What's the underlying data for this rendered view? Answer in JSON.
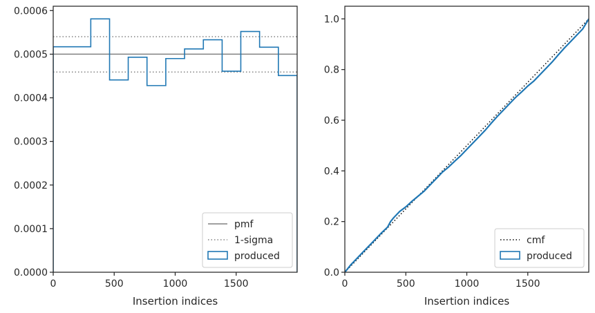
{
  "chart_data": [
    {
      "type": "step",
      "xlabel": "Insertion indices",
      "ylabel": "",
      "xlim": [
        0,
        2000
      ],
      "ylim": [
        0,
        0.00061
      ],
      "xticks": [
        0,
        500,
        1000,
        1500
      ],
      "xtick_labels": [
        "0",
        "500",
        "1000",
        "1500"
      ],
      "yticks": [
        0,
        0.0001,
        0.0002,
        0.0003,
        0.0004,
        0.0005,
        0.0006
      ],
      "ytick_labels": [
        "0.0000",
        "0.0001",
        "0.0002",
        "0.0003",
        "0.0004",
        "0.0005",
        "0.0006"
      ],
      "grid": false,
      "legend_position": "lower-right",
      "reference_lines": [
        {
          "name": "pmf",
          "y": 0.0005,
          "style": "solid",
          "color": "#808080"
        },
        {
          "name": "1-sigma",
          "y": 0.00054,
          "style": "dotted",
          "color": "#808080"
        },
        {
          "name": "1-sigma",
          "y": 0.000459,
          "style": "dotted",
          "color": "#808080"
        }
      ],
      "series": [
        {
          "name": "produced",
          "color": "#1f77b4",
          "bin_edges": [
            0,
            308,
            462,
            615,
            769,
            923,
            1077,
            1231,
            1385,
            1538,
            1692,
            1846,
            2000
          ],
          "values": [
            0.000517,
            0.000581,
            0.000441,
            0.000493,
            0.000428,
            0.00049,
            0.000512,
            0.000533,
            0.000461,
            0.000552,
            0.000516,
            0.000451
          ]
        }
      ],
      "legend": [
        "pmf",
        "1-sigma",
        "produced"
      ]
    },
    {
      "type": "line",
      "xlabel": "Insertion indices",
      "ylabel": "",
      "xlim": [
        0,
        2000
      ],
      "ylim": [
        0,
        1.05
      ],
      "xticks": [
        0,
        500,
        1000,
        1500
      ],
      "xtick_labels": [
        "0",
        "500",
        "1000",
        "1500"
      ],
      "yticks": [
        0,
        0.2,
        0.4,
        0.6,
        0.8,
        1.0
      ],
      "ytick_labels": [
        "0.0",
        "0.2",
        "0.4",
        "0.6",
        "0.8",
        "1.0"
      ],
      "grid": false,
      "legend_position": "lower-right",
      "series": [
        {
          "name": "cmf",
          "style": "dotted",
          "color": "#000000",
          "x": [
            0,
            2000
          ],
          "y": [
            0,
            1.0
          ]
        },
        {
          "name": "produced",
          "color": "#1f77b4",
          "x": [
            0,
            50,
            100,
            150,
            200,
            250,
            300,
            350,
            375,
            400,
            450,
            500,
            550,
            600,
            650,
            700,
            750,
            800,
            850,
            900,
            950,
            1000,
            1050,
            1100,
            1150,
            1200,
            1250,
            1300,
            1350,
            1400,
            1450,
            1500,
            1550,
            1600,
            1650,
            1700,
            1750,
            1800,
            1850,
            1900,
            1950,
            2000
          ],
          "y": [
            0,
            0.03,
            0.055,
            0.08,
            0.105,
            0.13,
            0.155,
            0.178,
            0.2,
            0.215,
            0.24,
            0.258,
            0.28,
            0.3,
            0.32,
            0.345,
            0.37,
            0.395,
            0.415,
            0.438,
            0.46,
            0.485,
            0.51,
            0.535,
            0.56,
            0.588,
            0.615,
            0.64,
            0.665,
            0.69,
            0.712,
            0.735,
            0.755,
            0.78,
            0.805,
            0.83,
            0.858,
            0.885,
            0.91,
            0.935,
            0.96,
            1.0
          ]
        }
      ],
      "legend": [
        "cmf",
        "produced"
      ]
    }
  ]
}
